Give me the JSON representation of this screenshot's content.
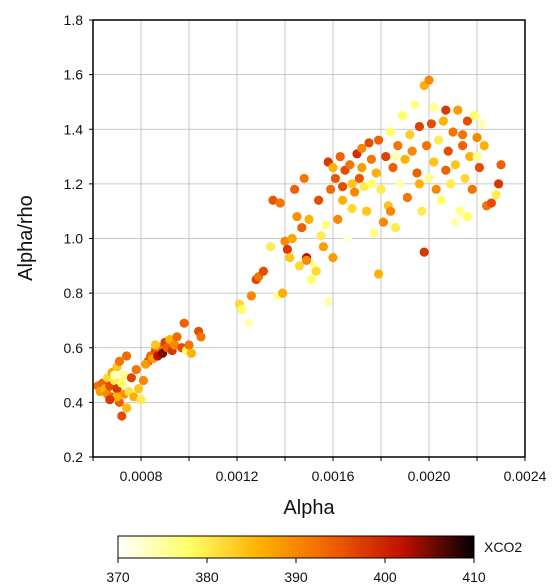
{
  "chart_data": {
    "type": "scatter",
    "title": "",
    "xlabel": "Alpha",
    "ylabel": "Alpha/rho",
    "xlim": [
      0.0006,
      0.0024
    ],
    "ylim": [
      0.2,
      1.8
    ],
    "x_ticks": [
      0.0008,
      0.0012,
      0.0016,
      0.002,
      0.0024
    ],
    "x_tick_labels": [
      "0.0008",
      "0.0012",
      "0.0016",
      "0.0020",
      "0.0024"
    ],
    "x_grid": [
      0.0006,
      0.0008,
      0.001,
      0.0012,
      0.0014,
      0.0016,
      0.0018,
      0.002,
      0.0022,
      0.0024
    ],
    "y_ticks": [
      0.2,
      0.4,
      0.6,
      0.8,
      1.0,
      1.2,
      1.4,
      1.6,
      1.8
    ],
    "y_tick_labels": [
      "0.2",
      "0.4",
      "0.6",
      "0.8",
      "1.0",
      "1.2",
      "1.4",
      "1.6",
      "1.8"
    ],
    "grid": true,
    "colorbar": {
      "label": "XCO2",
      "range": [
        370,
        410
      ],
      "ticks": [
        370,
        380,
        390,
        400,
        410
      ],
      "tick_labels": [
        "370",
        "380",
        "390",
        "400",
        "410"
      ],
      "colormap": [
        "#ffffff",
        "#ffff66",
        "#ffb000",
        "#f06000",
        "#c01000",
        "#000000"
      ]
    },
    "points": [
      [
        0.00062,
        0.46,
        392
      ],
      [
        0.00063,
        0.44,
        388
      ],
      [
        0.00064,
        0.47,
        394
      ],
      [
        0.00065,
        0.45,
        386
      ],
      [
        0.00066,
        0.43,
        390
      ],
      [
        0.00066,
        0.49,
        382
      ],
      [
        0.00067,
        0.46,
        396
      ],
      [
        0.00068,
        0.42,
        393
      ],
      [
        0.00068,
        0.51,
        387
      ],
      [
        0.00069,
        0.48,
        380
      ],
      [
        0.0007,
        0.45,
        398
      ],
      [
        0.0007,
        0.53,
        384
      ],
      [
        0.00071,
        0.4,
        394
      ],
      [
        0.00071,
        0.55,
        392
      ],
      [
        0.00072,
        0.47,
        378
      ],
      [
        0.00072,
        0.35,
        396
      ],
      [
        0.00073,
        0.43,
        389
      ],
      [
        0.00073,
        0.5,
        376
      ],
      [
        0.00074,
        0.38,
        385
      ],
      [
        0.00074,
        0.57,
        393
      ],
      [
        0.00075,
        0.44,
        381
      ],
      [
        0.00076,
        0.49,
        397
      ],
      [
        0.00077,
        0.42,
        386
      ],
      [
        0.00078,
        0.52,
        392
      ],
      [
        0.00079,
        0.45,
        384
      ],
      [
        0.0008,
        0.41,
        380
      ],
      [
        0.00081,
        0.48,
        390
      ],
      [
        0.00069,
        0.5,
        374
      ],
      [
        0.0007,
        0.42,
        386
      ],
      [
        0.00067,
        0.41,
        398
      ],
      [
        0.00083,
        0.55,
        397
      ],
      [
        0.00084,
        0.57,
        393
      ],
      [
        0.00085,
        0.56,
        388
      ],
      [
        0.00086,
        0.59,
        395
      ],
      [
        0.00087,
        0.57,
        402
      ],
      [
        0.00088,
        0.6,
        392
      ],
      [
        0.00089,
        0.58,
        405
      ],
      [
        0.0009,
        0.62,
        397
      ],
      [
        0.00091,
        0.6,
        394
      ],
      [
        0.00092,
        0.63,
        386
      ],
      [
        0.00093,
        0.59,
        398
      ],
      [
        0.00094,
        0.61,
        390
      ],
      [
        0.00095,
        0.64,
        393
      ],
      [
        0.00097,
        0.6,
        396
      ],
      [
        0.00098,
        0.69,
        394
      ],
      [
        0.00099,
        0.59,
        378
      ],
      [
        0.001,
        0.61,
        392
      ],
      [
        0.00101,
        0.58,
        386
      ],
      [
        0.00104,
        0.66,
        396
      ],
      [
        0.00105,
        0.64,
        392
      ],
      [
        0.00082,
        0.54,
        388
      ],
      [
        0.00086,
        0.61,
        384
      ],
      [
        0.00121,
        0.76,
        382
      ],
      [
        0.00122,
        0.74,
        378
      ],
      [
        0.00125,
        0.69,
        374
      ],
      [
        0.00126,
        0.79,
        390
      ],
      [
        0.00128,
        0.85,
        397
      ],
      [
        0.00129,
        0.86,
        392
      ],
      [
        0.00131,
        0.88,
        396
      ],
      [
        0.00134,
        0.97,
        380
      ],
      [
        0.00135,
        1.14,
        395
      ],
      [
        0.00137,
        0.79,
        376
      ],
      [
        0.00138,
        1.13,
        392
      ],
      [
        0.00139,
        0.8,
        386
      ],
      [
        0.0014,
        0.99,
        390
      ],
      [
        0.00141,
        0.96,
        398
      ],
      [
        0.00142,
        0.93,
        384
      ],
      [
        0.00143,
        1.0,
        387
      ],
      [
        0.00144,
        1.18,
        394
      ],
      [
        0.00145,
        1.08,
        389
      ],
      [
        0.00146,
        0.9,
        382
      ],
      [
        0.00147,
        1.04,
        394
      ],
      [
        0.00148,
        1.22,
        392
      ],
      [
        0.00149,
        0.93,
        402
      ],
      [
        0.00149,
        0.92,
        390
      ],
      [
        0.0015,
        1.07,
        386
      ],
      [
        0.00151,
        0.85,
        378
      ],
      [
        0.00152,
        0.9,
        375
      ],
      [
        0.00153,
        0.88,
        382
      ],
      [
        0.00154,
        1.14,
        396
      ],
      [
        0.00155,
        1.01,
        380
      ],
      [
        0.00156,
        0.97,
        388
      ],
      [
        0.00157,
        1.05,
        376
      ],
      [
        0.00158,
        1.28,
        398
      ],
      [
        0.00158,
        0.77,
        374
      ],
      [
        0.00159,
        1.18,
        393
      ],
      [
        0.0016,
        0.93,
        388
      ],
      [
        0.00161,
        1.22,
        395
      ],
      [
        0.00162,
        1.07,
        390
      ],
      [
        0.00163,
        1.3,
        394
      ],
      [
        0.00164,
        1.14,
        386
      ],
      [
        0.00165,
        1.25,
        396
      ],
      [
        0.00166,
        1.0,
        372
      ],
      [
        0.00167,
        1.27,
        392
      ],
      [
        0.00168,
        1.2,
        384
      ],
      [
        0.00169,
        1.17,
        390
      ],
      [
        0.0017,
        1.31,
        399
      ],
      [
        0.00171,
        1.22,
        395
      ],
      [
        0.00172,
        1.26,
        388
      ],
      [
        0.00173,
        1.19,
        380
      ],
      [
        0.00174,
        1.1,
        384
      ],
      [
        0.00175,
        1.35,
        396
      ],
      [
        0.00176,
        1.29,
        392
      ],
      [
        0.00177,
        1.02,
        376
      ],
      [
        0.00178,
        1.24,
        386
      ],
      [
        0.00179,
        1.36,
        394
      ],
      [
        0.00179,
        0.87,
        386
      ],
      [
        0.0018,
        1.18,
        380
      ],
      [
        0.00181,
        1.06,
        390
      ],
      [
        0.00182,
        1.3,
        397
      ],
      [
        0.00183,
        1.12,
        384
      ],
      [
        0.00184,
        1.39,
        378
      ],
      [
        0.00185,
        1.26,
        394
      ],
      [
        0.00186,
        1.04,
        380
      ],
      [
        0.00187,
        1.34,
        392
      ],
      [
        0.00188,
        1.2,
        374
      ],
      [
        0.00189,
        1.45,
        378
      ],
      [
        0.0019,
        1.29,
        386
      ],
      [
        0.00191,
        1.15,
        392
      ],
      [
        0.00192,
        1.38,
        383
      ],
      [
        0.00193,
        1.32,
        390
      ],
      [
        0.00194,
        1.49,
        376
      ],
      [
        0.00195,
        1.24,
        394
      ],
      [
        0.00196,
        1.41,
        397
      ],
      [
        0.00197,
        1.1,
        380
      ],
      [
        0.00198,
        0.95,
        398
      ],
      [
        0.00198,
        1.56,
        386
      ],
      [
        0.00199,
        1.34,
        392
      ],
      [
        0.002,
        1.22,
        376
      ],
      [
        0.002,
        1.58,
        390
      ],
      [
        0.00201,
        1.42,
        396
      ],
      [
        0.00202,
        1.28,
        384
      ],
      [
        0.00203,
        1.18,
        390
      ],
      [
        0.00204,
        1.36,
        380
      ],
      [
        0.00205,
        1.14,
        378
      ],
      [
        0.00206,
        1.43,
        386
      ],
      [
        0.00207,
        1.25,
        394
      ],
      [
        0.00208,
        1.32,
        396
      ],
      [
        0.00209,
        1.2,
        380
      ],
      [
        0.0021,
        1.39,
        392
      ],
      [
        0.00211,
        1.27,
        384
      ],
      [
        0.00212,
        1.47,
        388
      ],
      [
        0.00213,
        1.1,
        376
      ],
      [
        0.00214,
        1.34,
        394
      ],
      [
        0.00215,
        1.22,
        382
      ],
      [
        0.00216,
        1.43,
        396
      ],
      [
        0.00217,
        1.3,
        386
      ],
      [
        0.00218,
        1.18,
        392
      ],
      [
        0.00219,
        1.45,
        378
      ],
      [
        0.0022,
        1.37,
        390
      ],
      [
        0.00221,
        1.26,
        396
      ],
      [
        0.00222,
        1.42,
        374
      ],
      [
        0.00223,
        1.34,
        386
      ],
      [
        0.00224,
        1.12,
        392
      ],
      [
        0.00226,
        1.13,
        396
      ],
      [
        0.00228,
        1.16,
        380
      ],
      [
        0.00229,
        1.2,
        398
      ],
      [
        0.0023,
        1.27,
        394
      ],
      [
        0.00216,
        1.08,
        378
      ],
      [
        0.00211,
        1.06,
        374
      ],
      [
        0.00207,
        1.47,
        398
      ],
      [
        0.00186,
        1.3,
        374
      ],
      [
        0.00184,
        1.1,
        390
      ],
      [
        0.00196,
        1.2,
        386
      ],
      [
        0.00202,
        1.48,
        376
      ],
      [
        0.00214,
        1.38,
        392
      ],
      [
        0.0022,
        1.3,
        376
      ],
      [
        0.00176,
        1.2,
        378
      ],
      [
        0.00172,
        1.33,
        390
      ],
      [
        0.00168,
        1.11,
        382
      ],
      [
        0.00164,
        1.19,
        396
      ],
      [
        0.0016,
        1.26,
        386
      ]
    ]
  }
}
